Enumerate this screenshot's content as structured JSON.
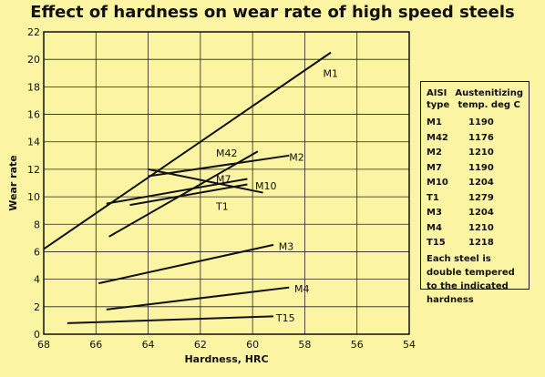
{
  "chart_data": {
    "type": "line",
    "title": "Effect of hardness on wear rate of high speed steels",
    "xlabel": "Hardness, HRC",
    "ylabel": "Wear rate",
    "xlim": [
      68,
      54
    ],
    "ylim": [
      0,
      22
    ],
    "x_reversed": true,
    "x_ticks": [
      68,
      66,
      64,
      62,
      60,
      58,
      56,
      54
    ],
    "y_ticks": [
      0,
      2,
      4,
      6,
      8,
      10,
      12,
      14,
      16,
      18,
      20,
      22
    ],
    "grid": true,
    "series": [
      {
        "name": "M1",
        "points": [
          [
            68,
            6.2
          ],
          [
            57,
            20.5
          ]
        ],
        "label_at": [
          57.3,
          19.0
        ]
      },
      {
        "name": "M42",
        "points": [
          [
            65.5,
            7.1
          ],
          [
            59.8,
            13.3
          ]
        ],
        "label_at": [
          61.4,
          13.2
        ]
      },
      {
        "name": "M2",
        "points": [
          [
            64,
            11.5
          ],
          [
            58.6,
            13.0
          ]
        ],
        "label_at": [
          58.6,
          12.9
        ]
      },
      {
        "name": "M7",
        "points": [
          [
            65.6,
            9.5
          ],
          [
            60.2,
            11.3
          ]
        ],
        "label_at": [
          61.4,
          11.3
        ]
      },
      {
        "name": "M10",
        "points": [
          [
            64.7,
            9.4
          ],
          [
            60.2,
            10.9
          ]
        ],
        "label_at": [
          59.9,
          10.8
        ]
      },
      {
        "name": "T1",
        "points": [
          [
            64.0,
            12.0
          ],
          [
            59.6,
            10.3
          ]
        ],
        "label_at": [
          61.4,
          9.3
        ]
      },
      {
        "name": "M3",
        "points": [
          [
            65.9,
            3.7
          ],
          [
            59.2,
            6.5
          ]
        ],
        "label_at": [
          59.0,
          6.4
        ]
      },
      {
        "name": "M4",
        "points": [
          [
            65.6,
            1.8
          ],
          [
            58.6,
            3.4
          ]
        ],
        "label_at": [
          58.4,
          3.3
        ]
      },
      {
        "name": "T15",
        "points": [
          [
            67.1,
            0.8
          ],
          [
            59.2,
            1.3
          ]
        ],
        "label_at": [
          59.1,
          1.2
        ]
      }
    ],
    "legend": {
      "placement": "right",
      "header_type": "AISI type",
      "header_temp": "Austenitizing temp. deg C",
      "rows": [
        {
          "type": "M1",
          "temp": "1190"
        },
        {
          "type": "M42",
          "temp": "1176"
        },
        {
          "type": "M2",
          "temp": "1210"
        },
        {
          "type": "M7",
          "temp": "1190"
        },
        {
          "type": "M10",
          "temp": "1204"
        },
        {
          "type": "T1",
          "temp": "1279"
        },
        {
          "type": "M3",
          "temp": "1204"
        },
        {
          "type": "M4",
          "temp": "1210"
        },
        {
          "type": "T15",
          "temp": "1218"
        }
      ],
      "note": "Each steel is double tempered to the indicated hardness"
    },
    "colors": {
      "background": "#fbf4a3",
      "line": "#111111",
      "grid": "#222222"
    }
  }
}
